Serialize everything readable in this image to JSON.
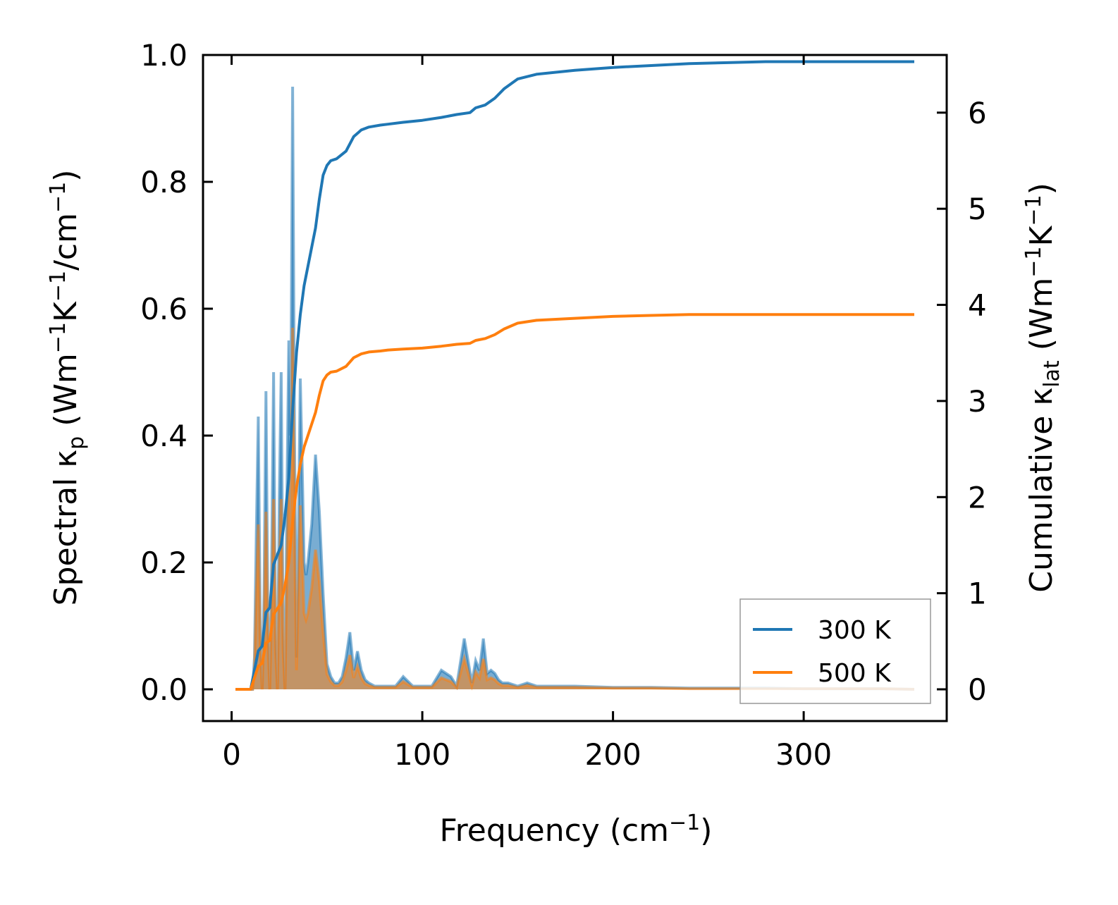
{
  "chart_data": {
    "type": "line",
    "xlabel": "Frequency (cm⁻¹)",
    "ylabel_left": "Spectral κₚ (Wm⁻¹K⁻¹/cm⁻¹)",
    "ylabel_right": "Cumulative κ_lat (Wm⁻¹K⁻¹)",
    "xlim": [
      -15,
      375
    ],
    "ylim_left": [
      -0.05,
      1.0
    ],
    "ylim_right": [
      -0.33,
      6.6
    ],
    "xticks": [
      0,
      100,
      200,
      300
    ],
    "yticks_left": [
      0.0,
      0.2,
      0.4,
      0.6,
      0.8,
      1.0
    ],
    "yticks_right": [
      0,
      1,
      2,
      3,
      4,
      5,
      6
    ],
    "x_tick_labels": [
      "0",
      "100",
      "200",
      "300"
    ],
    "y_left_tick_labels": [
      "0.0",
      "0.2",
      "0.4",
      "0.6",
      "0.8",
      "1.0"
    ],
    "y_right_tick_labels": [
      "0",
      "1",
      "2",
      "3",
      "4",
      "5",
      "6"
    ],
    "legend": {
      "position": "lower-right",
      "entries": [
        "300 K",
        "500 K"
      ]
    },
    "colors": {
      "300 K": "#1f77b4",
      "500 K": "#ff7f0e",
      "fill_overlap": "#c8a27c"
    },
    "spectral_series": [
      {
        "name": "300 K",
        "axis": "left",
        "x": [
          2,
          10,
          11,
          12,
          13,
          14,
          15,
          16,
          17,
          18,
          19,
          20,
          21,
          22,
          23,
          24,
          25,
          26,
          27,
          28,
          29,
          30,
          31,
          32,
          33,
          34,
          35,
          36,
          37,
          38,
          39,
          40,
          42,
          44,
          46,
          48,
          50,
          52,
          54,
          56,
          58,
          60,
          62,
          64,
          66,
          68,
          70,
          72,
          75,
          78,
          82,
          86,
          90,
          95,
          100,
          105,
          110,
          115,
          118,
          122,
          126,
          128,
          130,
          132,
          134,
          136,
          138,
          140,
          142,
          145,
          150,
          155,
          160,
          170,
          180,
          200,
          220,
          240,
          260,
          280,
          300,
          320,
          340,
          358
        ],
        "values": [
          0.0,
          0.0,
          0.0,
          0.05,
          0.25,
          0.43,
          0.1,
          0.0,
          0.15,
          0.47,
          0.12,
          0.0,
          0.2,
          0.5,
          0.1,
          0.0,
          0.3,
          0.5,
          0.1,
          0.0,
          0.3,
          0.55,
          0.4,
          0.95,
          0.4,
          0.05,
          0.25,
          0.49,
          0.35,
          0.2,
          0.18,
          0.2,
          0.26,
          0.37,
          0.28,
          0.15,
          0.04,
          0.02,
          0.01,
          0.01,
          0.02,
          0.05,
          0.09,
          0.03,
          0.06,
          0.03,
          0.015,
          0.01,
          0.005,
          0.005,
          0.005,
          0.005,
          0.02,
          0.005,
          0.005,
          0.005,
          0.03,
          0.02,
          0.005,
          0.08,
          0.01,
          0.045,
          0.03,
          0.08,
          0.025,
          0.03,
          0.025,
          0.015,
          0.01,
          0.01,
          0.005,
          0.01,
          0.005,
          0.005,
          0.005,
          0.003,
          0.003,
          0.002,
          0.002,
          0.002,
          0.001,
          0.001,
          0.001,
          0.0
        ]
      },
      {
        "name": "500 K",
        "axis": "left",
        "x": [
          2,
          10,
          11,
          12,
          13,
          14,
          15,
          16,
          17,
          18,
          19,
          20,
          21,
          22,
          23,
          24,
          25,
          26,
          27,
          28,
          29,
          30,
          31,
          32,
          33,
          34,
          35,
          36,
          37,
          38,
          39,
          40,
          42,
          44,
          46,
          48,
          50,
          52,
          54,
          56,
          58,
          60,
          62,
          64,
          66,
          68,
          70,
          72,
          75,
          78,
          82,
          86,
          90,
          95,
          100,
          105,
          110,
          115,
          118,
          122,
          126,
          128,
          130,
          132,
          134,
          136,
          138,
          140,
          142,
          145,
          150,
          155,
          160,
          170,
          180,
          200,
          220,
          240,
          260,
          280,
          300,
          320,
          340,
          358
        ],
        "values": [
          0.0,
          0.0,
          0.0,
          0.03,
          0.15,
          0.26,
          0.06,
          0.0,
          0.09,
          0.28,
          0.07,
          0.0,
          0.12,
          0.3,
          0.06,
          0.0,
          0.18,
          0.3,
          0.06,
          0.0,
          0.18,
          0.33,
          0.24,
          0.57,
          0.24,
          0.03,
          0.15,
          0.29,
          0.21,
          0.12,
          0.11,
          0.12,
          0.16,
          0.22,
          0.17,
          0.09,
          0.024,
          0.012,
          0.006,
          0.006,
          0.012,
          0.03,
          0.054,
          0.018,
          0.036,
          0.018,
          0.009,
          0.006,
          0.003,
          0.003,
          0.003,
          0.003,
          0.012,
          0.003,
          0.003,
          0.003,
          0.018,
          0.012,
          0.003,
          0.048,
          0.006,
          0.027,
          0.018,
          0.048,
          0.015,
          0.018,
          0.015,
          0.009,
          0.006,
          0.006,
          0.003,
          0.006,
          0.003,
          0.003,
          0.003,
          0.002,
          0.002,
          0.001,
          0.001,
          0.001,
          0.001,
          0.001,
          0.001,
          0.0
        ]
      }
    ],
    "cumulative_series": [
      {
        "name": "300 K",
        "axis": "right",
        "x": [
          2,
          10,
          12,
          14,
          16,
          18,
          20,
          22,
          24,
          26,
          28,
          30,
          32,
          34,
          36,
          38,
          40,
          42,
          44,
          46,
          48,
          50,
          52,
          55,
          60,
          64,
          68,
          72,
          78,
          82,
          90,
          100,
          110,
          118,
          125,
          128,
          133,
          138,
          143,
          150,
          160,
          180,
          200,
          220,
          240,
          260,
          280,
          300,
          320,
          340,
          358
        ],
        "values": [
          0.0,
          0.0,
          0.2,
          0.4,
          0.45,
          0.8,
          0.85,
          1.3,
          1.4,
          1.5,
          1.8,
          2.2,
          2.9,
          3.5,
          3.9,
          4.2,
          4.4,
          4.6,
          4.8,
          5.1,
          5.35,
          5.45,
          5.5,
          5.52,
          5.6,
          5.75,
          5.82,
          5.85,
          5.87,
          5.88,
          5.9,
          5.92,
          5.95,
          5.98,
          6.0,
          6.05,
          6.08,
          6.15,
          6.25,
          6.35,
          6.4,
          6.44,
          6.47,
          6.49,
          6.51,
          6.52,
          6.53,
          6.53,
          6.53,
          6.53,
          6.53
        ]
      },
      {
        "name": "500 K",
        "axis": "right",
        "x": [
          2,
          10,
          12,
          14,
          16,
          18,
          20,
          22,
          24,
          26,
          28,
          30,
          32,
          34,
          36,
          38,
          40,
          42,
          44,
          46,
          48,
          50,
          52,
          55,
          60,
          64,
          68,
          72,
          78,
          82,
          90,
          100,
          110,
          118,
          125,
          128,
          133,
          138,
          143,
          150,
          160,
          180,
          200,
          220,
          240,
          260,
          280,
          300,
          320,
          340,
          358
        ],
        "values": [
          0.0,
          0.0,
          0.12,
          0.24,
          0.27,
          0.48,
          0.51,
          0.78,
          0.84,
          0.9,
          1.08,
          1.32,
          1.74,
          2.1,
          2.34,
          2.52,
          2.64,
          2.76,
          2.88,
          3.06,
          3.21,
          3.27,
          3.3,
          3.31,
          3.36,
          3.45,
          3.49,
          3.51,
          3.52,
          3.53,
          3.54,
          3.55,
          3.57,
          3.59,
          3.6,
          3.63,
          3.65,
          3.69,
          3.75,
          3.81,
          3.84,
          3.86,
          3.88,
          3.89,
          3.9,
          3.9,
          3.9,
          3.9,
          3.9,
          3.9,
          3.9
        ]
      }
    ]
  }
}
